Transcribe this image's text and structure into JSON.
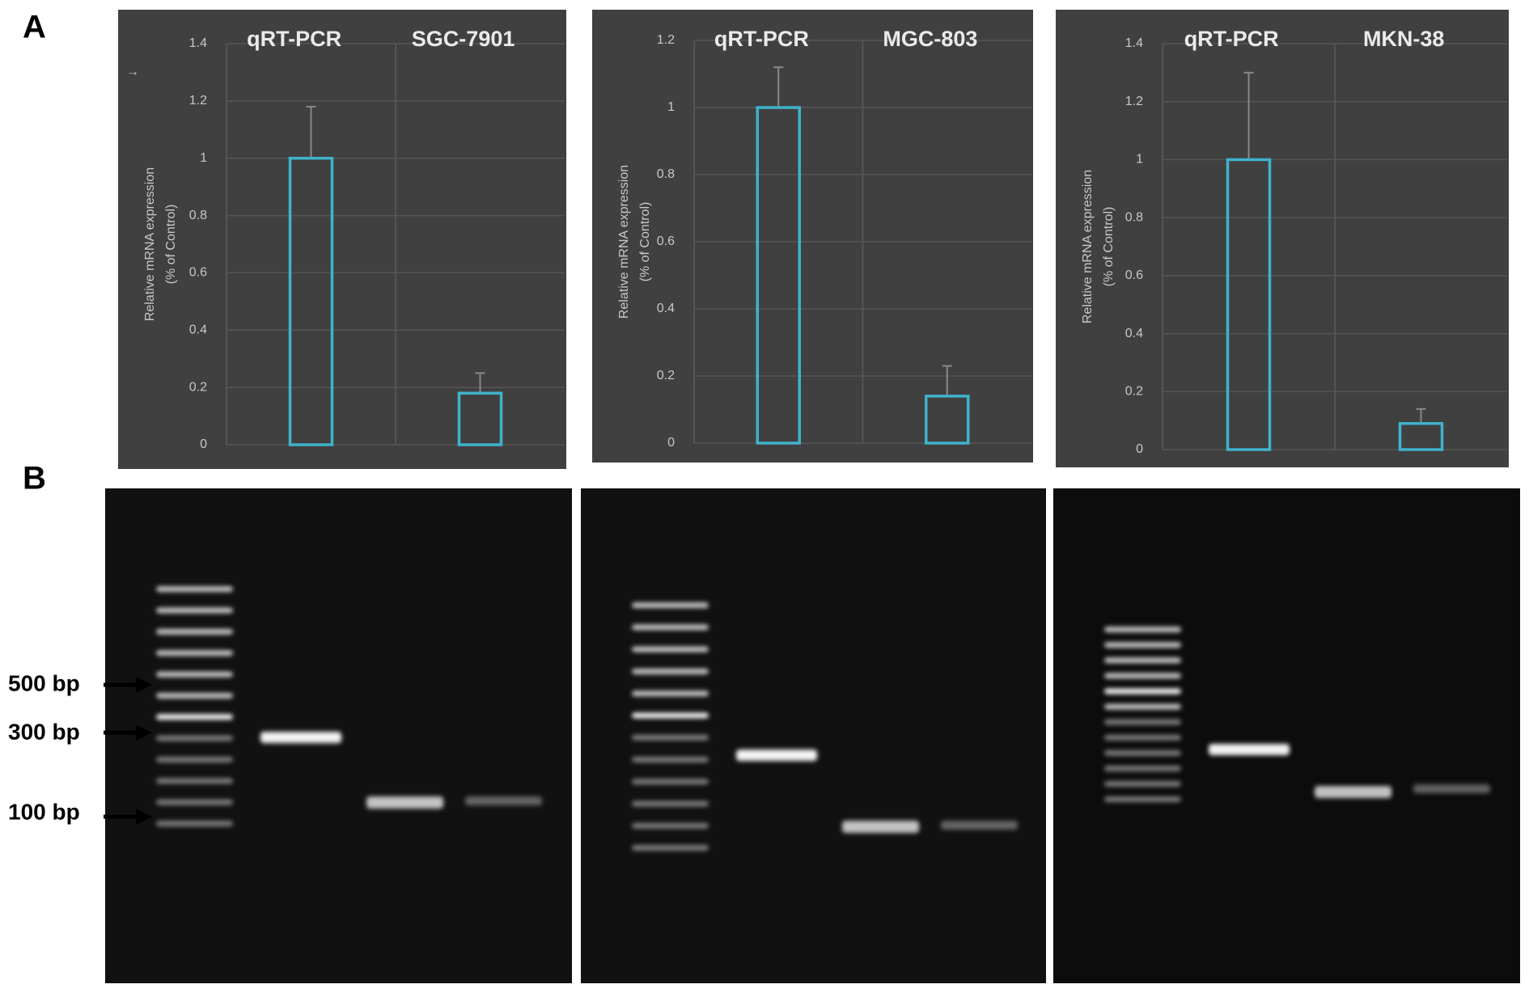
{
  "figure": {
    "panel_labels": [
      "A",
      "B"
    ],
    "markers": [
      "500 bp",
      "300 bp",
      "100 bp"
    ]
  },
  "chart_data": [
    {
      "type": "bar",
      "title": "qRT-PCR",
      "subtitle": "SGC-7901",
      "ylabel": [
        "Relative mRNA expression",
        "(% of Control)"
      ],
      "categories": [
        null,
        null
      ],
      "values": [
        1,
        0.18
      ],
      "errors": [
        0.18,
        0.07
      ],
      "color": "#3fb3cc",
      "ylim": [
        0,
        1.4
      ],
      "yticks": [
        0,
        0.2,
        0.4,
        0.6,
        0.8,
        1,
        1.2,
        1.4
      ],
      "grid": true
    },
    {
      "type": "bar",
      "title": "qRT-PCR",
      "subtitle": "MGC-803",
      "ylabel": [
        "Relative mRNA expression",
        "(% of Control)"
      ],
      "categories": [
        null,
        null
      ],
      "values": [
        1,
        0.14
      ],
      "errors": [
        0.12,
        0.09
      ],
      "color": "#3fb3cc",
      "ylim": [
        0,
        1.2
      ],
      "yticks": [
        0,
        0.2,
        0.4,
        0.6,
        0.8,
        1,
        1.2
      ],
      "grid": true
    },
    {
      "type": "bar",
      "title": "qRT-PCR",
      "subtitle": "MKN-38",
      "ylabel": [
        "Relative mRNA expression",
        "(% of Control)"
      ],
      "categories": [
        null,
        null
      ],
      "values": [
        1,
        0.09
      ],
      "errors": [
        0.3,
        0.05
      ],
      "color": "#3fb3cc",
      "ylim": [
        0,
        1.4
      ],
      "yticks": [
        0,
        0.2,
        0.4,
        0.6,
        0.8,
        1,
        1.2,
        1.4
      ],
      "grid": true
    }
  ]
}
